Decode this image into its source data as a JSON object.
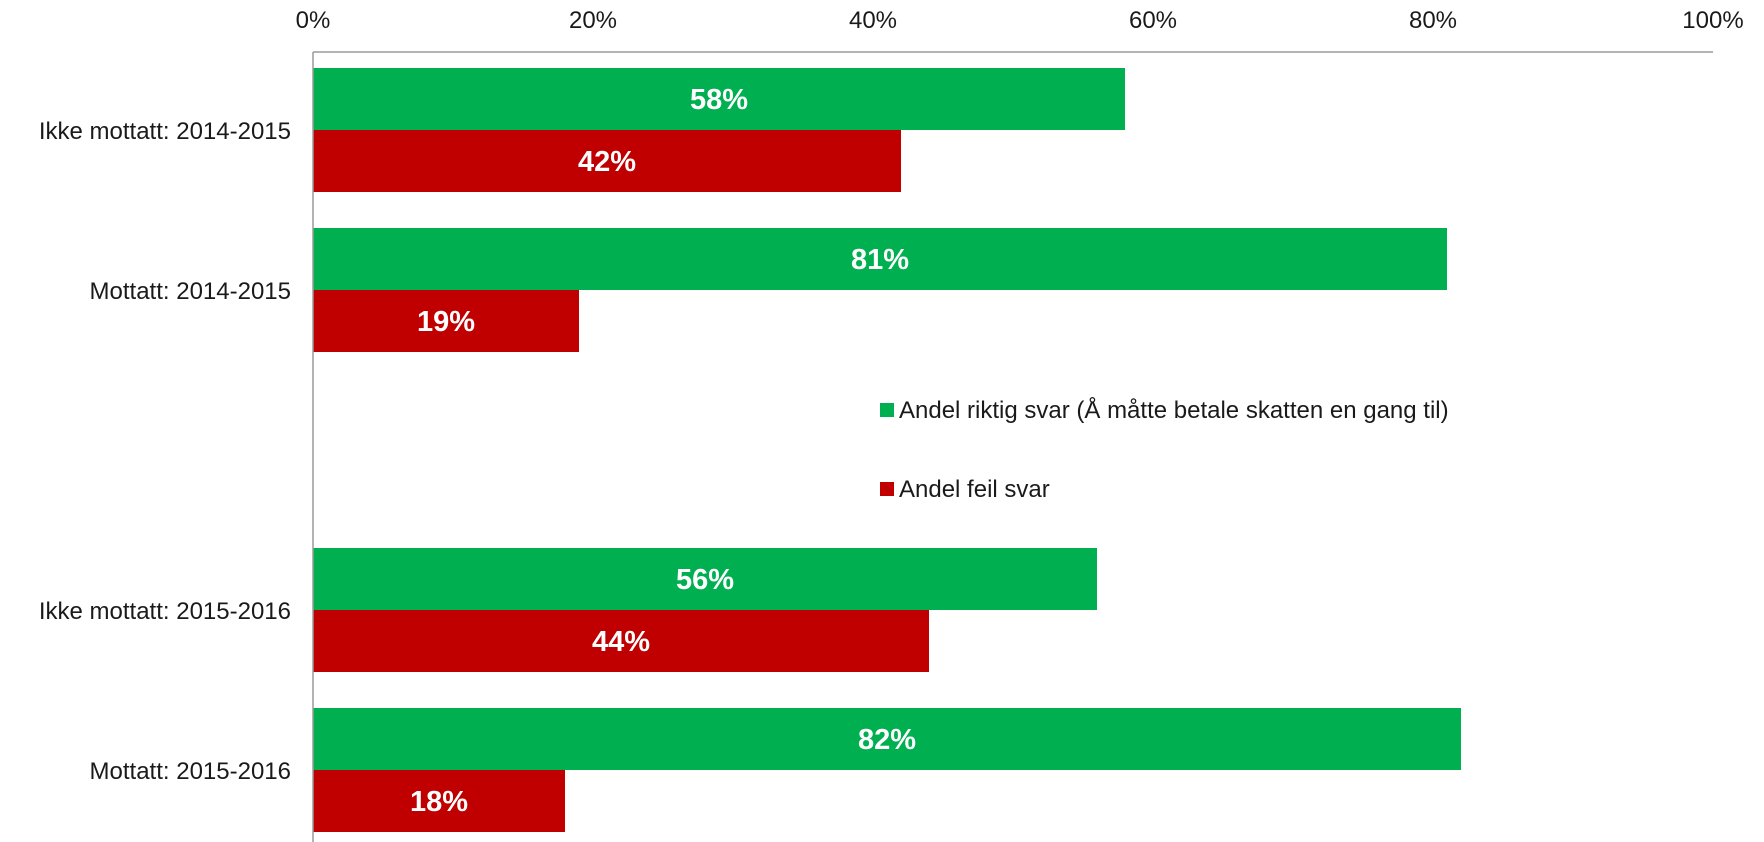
{
  "chart_data": {
    "type": "bar",
    "orientation": "horizontal",
    "categories": [
      "Ikke mottatt: 2014-2015",
      "Mottatt: 2014-2015",
      "",
      "Ikke mottatt: 2015-2016",
      "Mottatt: 2015-2016"
    ],
    "series": [
      {
        "name": "Andel riktig svar (Å måtte betale skatten en gang til)",
        "color": "#00b050",
        "values": [
          58,
          81,
          null,
          56,
          82
        ]
      },
      {
        "name": "Andel feil svar",
        "color": "#c00000",
        "values": [
          42,
          19,
          null,
          44,
          18
        ]
      }
    ],
    "data_labels": [
      [
        "58%",
        "81%",
        "",
        "56%",
        "82%"
      ],
      [
        "42%",
        "19%",
        "",
        "44%",
        "18%"
      ]
    ],
    "x_ticks": [
      "0%",
      "20%",
      "40%",
      "60%",
      "80%",
      "100%"
    ],
    "xlim": [
      0,
      100
    ],
    "x_axis_position": "top",
    "grid": false,
    "legend_position": "center-right"
  }
}
